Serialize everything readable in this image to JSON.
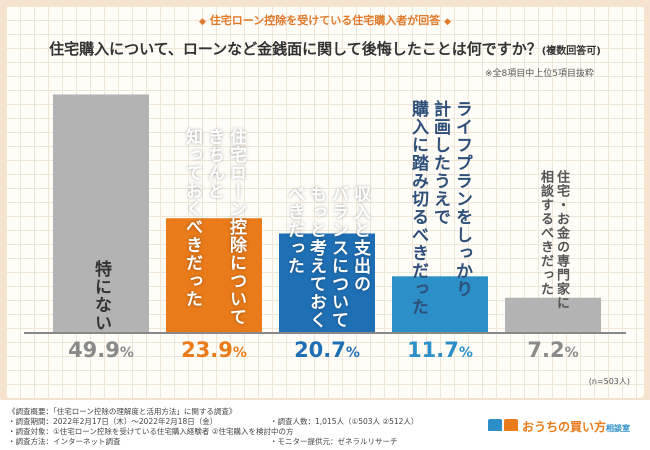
{
  "banner": "住宅ローン控除を受けている住宅購入者が回答",
  "title": "住宅購入について、ローンなど金銭面に関して後悔したことは何ですか？",
  "title_sub": "(複数回答可)",
  "note": "※全8項目中上位5項目抜粋",
  "sample": "(n=503人)",
  "chart_data": {
    "type": "bar",
    "title": "住宅購入について、ローンなど金銭面に関して後悔したことは何ですか？(複数回答可)",
    "categories": [
      "特にない",
      "住宅ローン控除について\nきちんと\n知っておくべきだった",
      "収入と支出の\nバランスについて\nもっと考えておく\nべきだった",
      "ライフプランをしっかり\n計画したうえで\n購入に踏み切るべきだった",
      "住宅・お金の専門家に\n相談するべきだった"
    ],
    "values": [
      49.9,
      23.9,
      20.7,
      11.7,
      7.2
    ],
    "value_labels": [
      "49.9",
      "23.9",
      "20.7",
      "11.7",
      "7.2"
    ],
    "unit": "%",
    "colors": [
      "#b3b3b3",
      "#e97b1a",
      "#1f6fb5",
      "#2d8fc7",
      "#b3b3b3"
    ],
    "pct_colors": [
      "#8a8a8a",
      "#e97b1a",
      "#1f6fb5",
      "#2d8fc7",
      "#8a8a8a"
    ],
    "label_styles": [
      "inside",
      "inside",
      "inside",
      "inside-above",
      "above-gray"
    ],
    "ylim": [
      0,
      50
    ]
  },
  "footer": {
    "l1": "《調査概要：「住宅ローン控除の理解度と活用方法」に関する調査》",
    "l2": "・調査期間：2022年2月17日（木）～2022年2月18日（金）",
    "l3": "・調査対象：①住宅ローン控除を受けている住宅購入経験者 ②住宅購入を検討中の方",
    "l4": "・調査方法：インターネット調査",
    "r1": "・調査人数：1,015人（①503人 ②512人）",
    "r2": "・モニター提供元：ゼネラルリサーチ",
    "logo": "おうちの買い方",
    "logo_suffix": "相談室"
  }
}
